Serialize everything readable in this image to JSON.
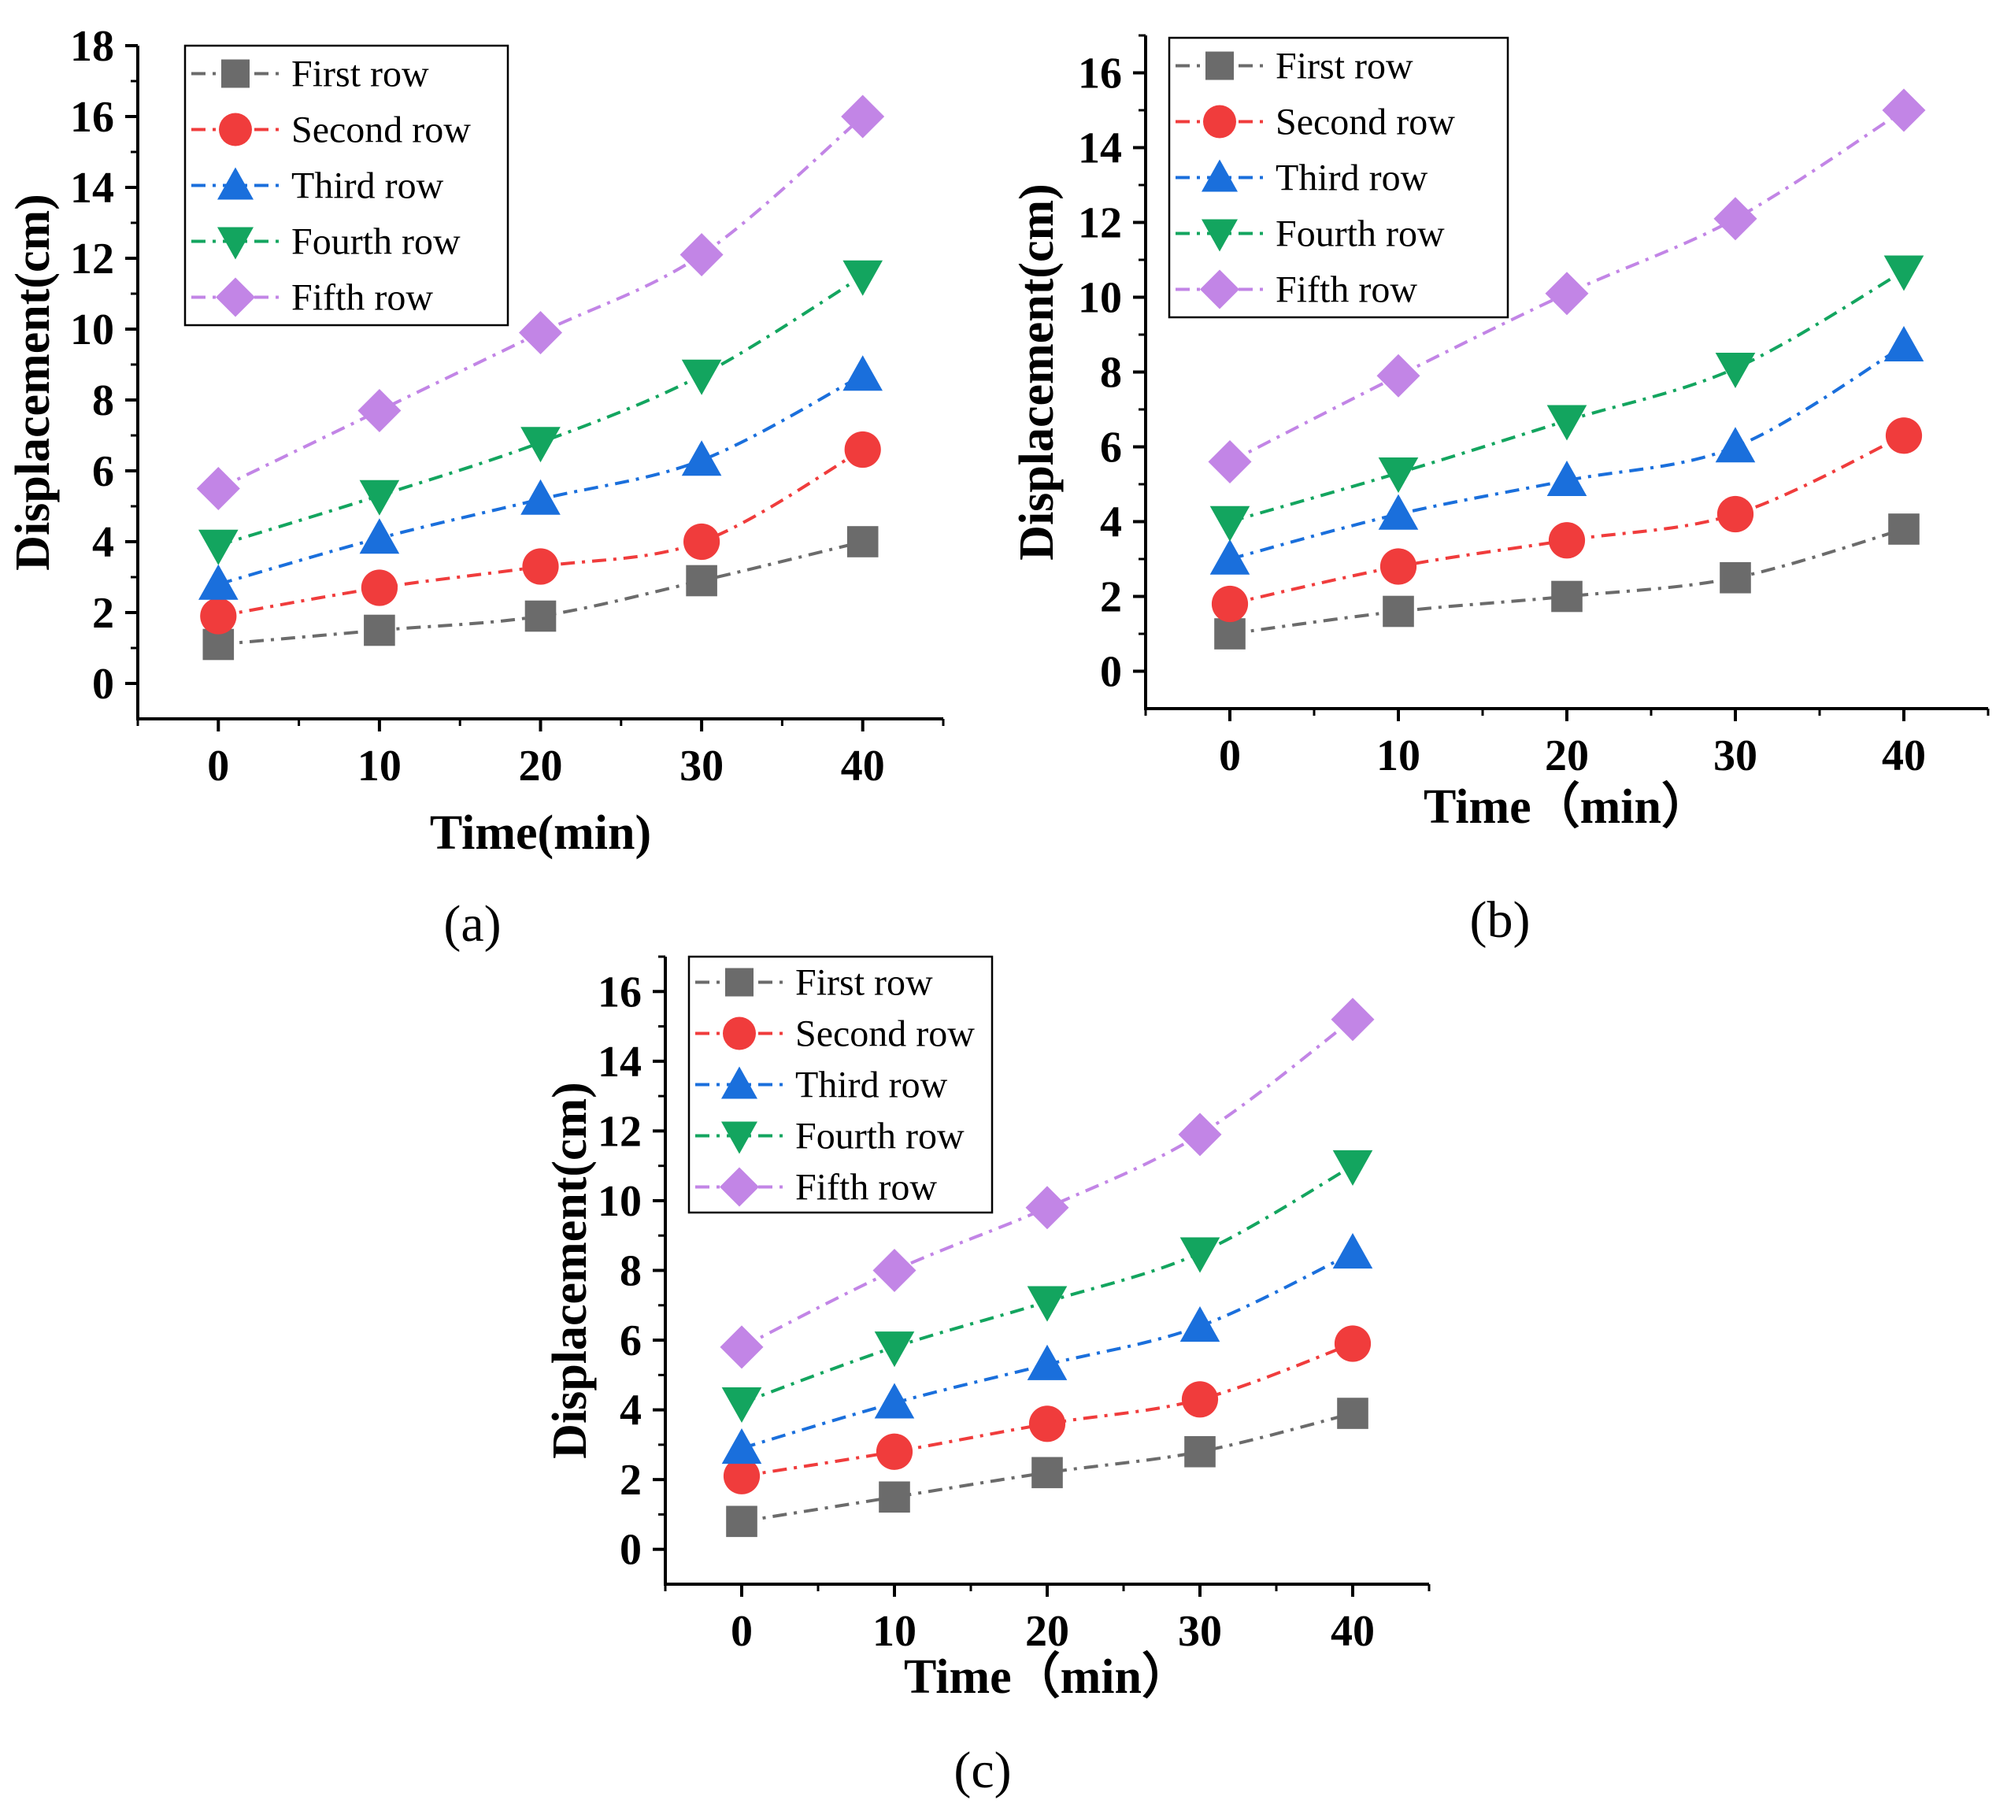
{
  "chart_data": [
    {
      "type": "line",
      "panel_label": "(a)",
      "xlabel": "Time(min)",
      "ylabel": "Displacement(cm)",
      "x": [
        0,
        10,
        20,
        30,
        40
      ],
      "xlim": [
        -5,
        45
      ],
      "ylim": [
        -1,
        18
      ],
      "xticks": [
        "0",
        "10",
        "20",
        "30",
        "40"
      ],
      "yticks": [
        "0",
        "2",
        "4",
        "6",
        "8",
        "10",
        "12",
        "14",
        "16",
        "18"
      ],
      "legend_position": "top-left",
      "grid": false,
      "series": [
        {
          "name": "First row",
          "color": "#6b6b6b",
          "marker": "square",
          "values": [
            1.1,
            1.5,
            1.9,
            2.9,
            4.0
          ]
        },
        {
          "name": "Second row",
          "color": "#f03c3c",
          "marker": "circle",
          "values": [
            1.9,
            2.7,
            3.3,
            4.0,
            6.6
          ]
        },
        {
          "name": "Third row",
          "color": "#1a6fdc",
          "marker": "triangle-up",
          "values": [
            2.8,
            4.1,
            5.2,
            6.3,
            8.7
          ]
        },
        {
          "name": "Fourth row",
          "color": "#13a55f",
          "marker": "triangle-down",
          "values": [
            3.9,
            5.3,
            6.8,
            8.7,
            11.5
          ]
        },
        {
          "name": "Fifth row",
          "color": "#c285e6",
          "marker": "diamond",
          "values": [
            5.5,
            7.7,
            9.9,
            12.1,
            16.0
          ]
        }
      ]
    },
    {
      "type": "line",
      "panel_label": "(b)",
      "xlabel": "Time（min）",
      "ylabel": "Displacement(cm)",
      "x": [
        0,
        10,
        20,
        30,
        40
      ],
      "xlim": [
        -5,
        45
      ],
      "ylim": [
        -1,
        17
      ],
      "xticks": [
        "0",
        "10",
        "20",
        "30",
        "40"
      ],
      "yticks": [
        "0",
        "2",
        "4",
        "6",
        "8",
        "10",
        "12",
        "14",
        "16"
      ],
      "legend_position": "top-left",
      "grid": false,
      "series": [
        {
          "name": "First row",
          "color": "#6b6b6b",
          "marker": "square",
          "values": [
            1.0,
            1.6,
            2.0,
            2.5,
            3.8
          ]
        },
        {
          "name": "Second row",
          "color": "#f03c3c",
          "marker": "circle",
          "values": [
            1.8,
            2.8,
            3.5,
            4.2,
            6.3
          ]
        },
        {
          "name": "Third row",
          "color": "#1a6fdc",
          "marker": "triangle-up",
          "values": [
            3.0,
            4.2,
            5.1,
            6.0,
            8.7
          ]
        },
        {
          "name": "Fourth row",
          "color": "#13a55f",
          "marker": "triangle-down",
          "values": [
            4.0,
            5.3,
            6.7,
            8.1,
            10.7
          ]
        },
        {
          "name": "Fifth row",
          "color": "#c285e6",
          "marker": "diamond",
          "values": [
            5.6,
            7.9,
            10.1,
            12.1,
            15.0
          ]
        }
      ]
    },
    {
      "type": "line",
      "panel_label": "(c)",
      "xlabel": "Time（min）",
      "ylabel": "Displacement(cm)",
      "x": [
        0,
        10,
        20,
        30,
        40
      ],
      "xlim": [
        -5,
        45
      ],
      "ylim": [
        -1,
        17
      ],
      "xticks": [
        "0",
        "10",
        "20",
        "30",
        "40"
      ],
      "yticks": [
        "0",
        "2",
        "4",
        "6",
        "8",
        "10",
        "12",
        "14",
        "16"
      ],
      "legend_position": "top-left",
      "grid": false,
      "series": [
        {
          "name": "First row",
          "color": "#6b6b6b",
          "marker": "square",
          "values": [
            0.8,
            1.5,
            2.2,
            2.8,
            3.9
          ]
        },
        {
          "name": "Second row",
          "color": "#f03c3c",
          "marker": "circle",
          "values": [
            2.1,
            2.8,
            3.6,
            4.3,
            5.9
          ]
        },
        {
          "name": "Third row",
          "color": "#1a6fdc",
          "marker": "triangle-up",
          "values": [
            2.9,
            4.2,
            5.3,
            6.4,
            8.5
          ]
        },
        {
          "name": "Fourth row",
          "color": "#13a55f",
          "marker": "triangle-down",
          "values": [
            4.2,
            5.8,
            7.1,
            8.5,
            11.0
          ]
        },
        {
          "name": "Fifth row",
          "color": "#c285e6",
          "marker": "diamond",
          "values": [
            5.8,
            8.0,
            9.8,
            11.9,
            15.2
          ]
        }
      ]
    }
  ]
}
